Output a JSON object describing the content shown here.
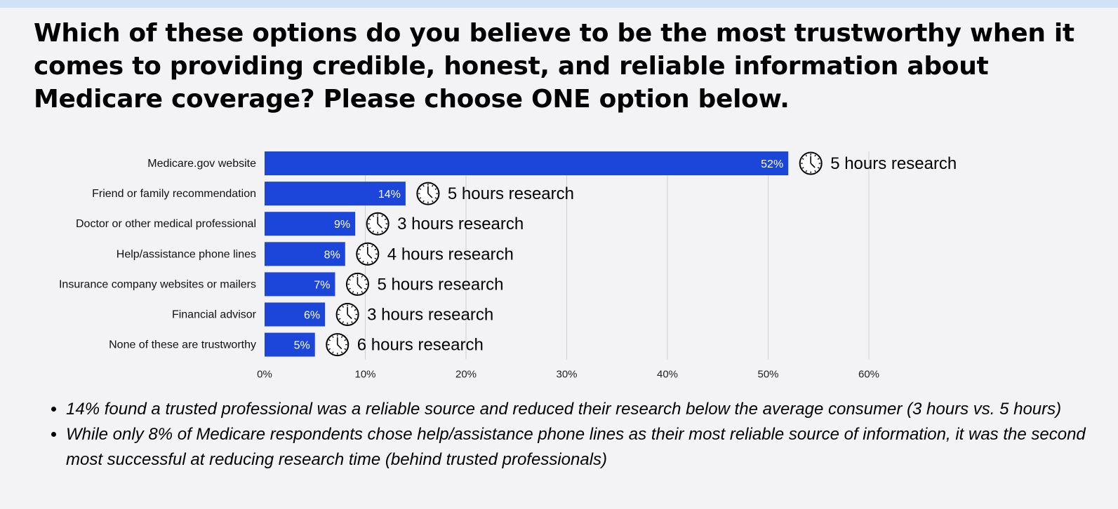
{
  "header": {
    "title": "Which of these options do you believe to be the most trustworthy when it comes to providing credible, honest, and reliable information about Medicare coverage? Please choose ONE option below."
  },
  "colors": {
    "bar": "#1c46d9",
    "grid": "#cfcfcf",
    "background": "#f3f3f5",
    "top_strip": "#cfe3f7"
  },
  "chart_data": {
    "type": "bar",
    "orientation": "horizontal",
    "categories": [
      "Medicare.gov website",
      "Friend or family recommendation",
      "Doctor or other medical professional",
      "Help/assistance phone lines",
      "Insurance company websites or mailers",
      "Financial advisor",
      "None of these are trustworthy"
    ],
    "values": [
      52,
      14,
      9,
      8,
      7,
      6,
      5
    ],
    "value_labels": [
      "52%",
      "14%",
      "9%",
      "8%",
      "7%",
      "6%",
      "5%"
    ],
    "annotations": [
      "5 hours research",
      "5 hours research",
      "3 hours research",
      "4 hours research",
      "5 hours research",
      "3 hours research",
      "6 hours research"
    ],
    "annotation_icon": "clock-icon",
    "xlim": [
      0,
      60
    ],
    "xticks": [
      0,
      10,
      20,
      30,
      40,
      50,
      60
    ],
    "xtick_labels": [
      "0%",
      "10%",
      "20%",
      "30%",
      "40%",
      "50%",
      "60%"
    ],
    "grid": true,
    "title": "",
    "xlabel": "",
    "ylabel": ""
  },
  "notes": {
    "bullets": [
      "14% found a trusted professional was a reliable source and reduced their research below the average consumer (3 hours vs. 5 hours)",
      "While only 8% of Medicare respondents chose help/assistance phone lines as their most reliable source of information, it was the second most successful at reducing research time (behind trusted professionals)"
    ]
  }
}
